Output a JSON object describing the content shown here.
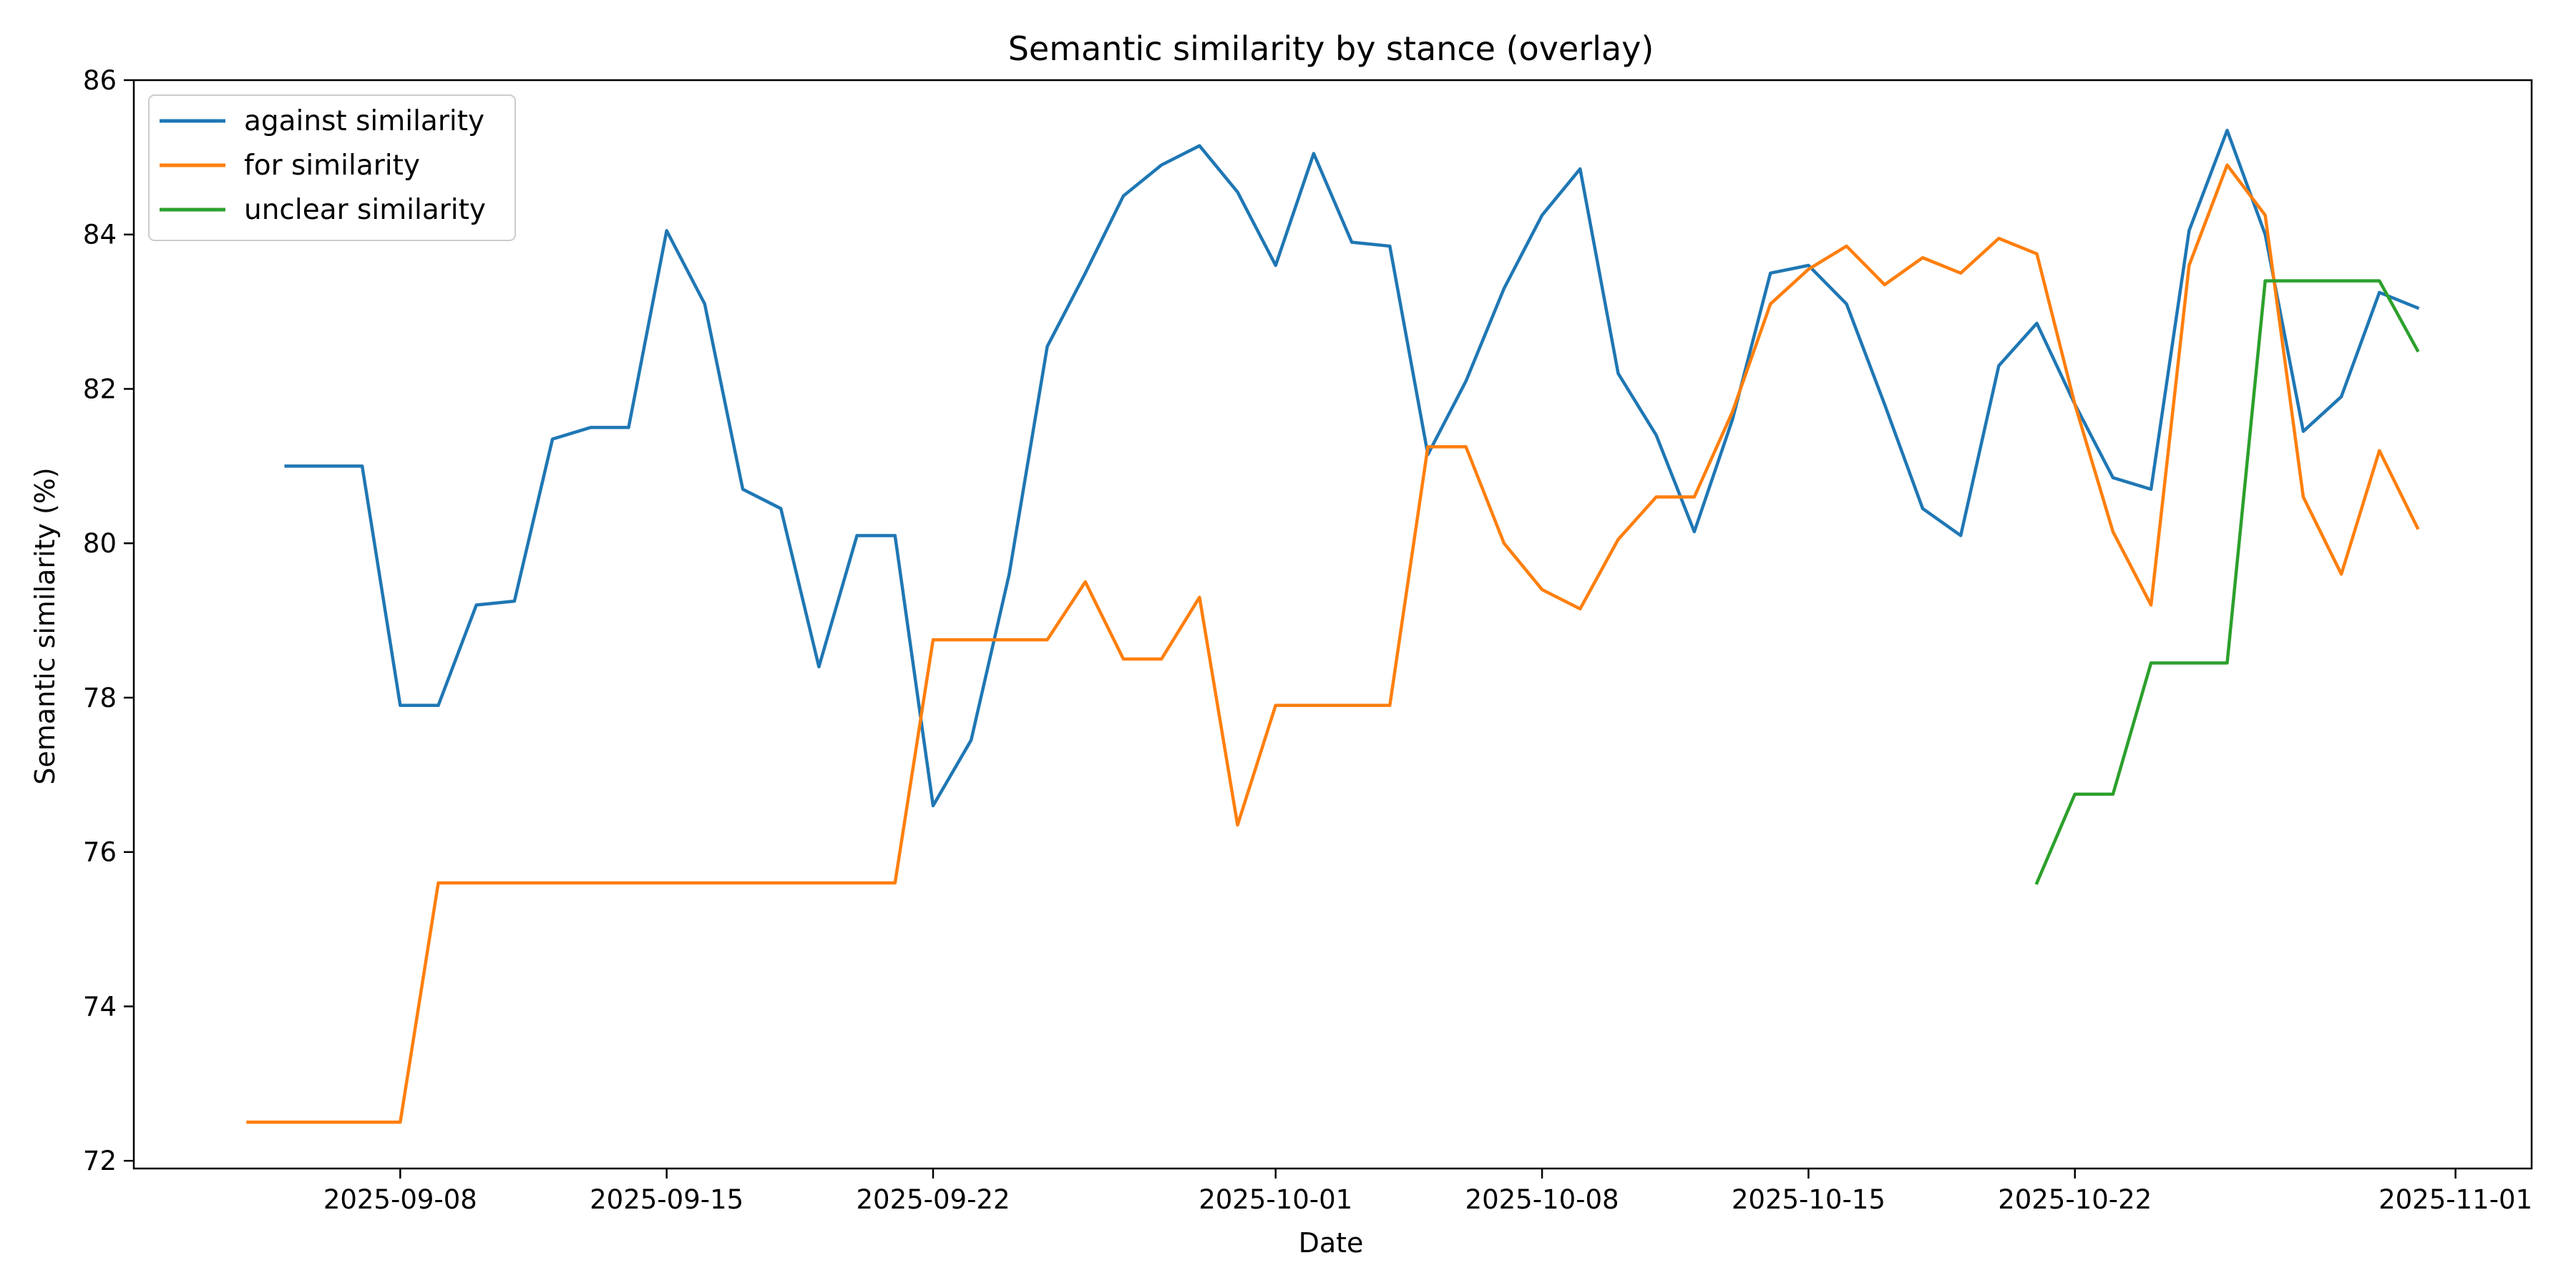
{
  "chart_data": {
    "type": "line",
    "title": "Semantic similarity by stance (overlay)",
    "xlabel": "Date",
    "ylabel": "Semantic similarity (%)",
    "x_axis_type": "date",
    "xlim": [
      "2025-09-01",
      "2025-11-03"
    ],
    "ylim": [
      71.9,
      86.0
    ],
    "x_ticks": [
      "2025-09-08",
      "2025-09-15",
      "2025-09-22",
      "2025-10-01",
      "2025-10-08",
      "2025-10-15",
      "2025-10-22",
      "2025-11-01"
    ],
    "y_ticks": [
      72,
      74,
      76,
      78,
      80,
      82,
      84,
      86
    ],
    "grid": false,
    "legend_position": "upper-left",
    "series": [
      {
        "name": "against similarity",
        "color": "#1f77b4",
        "points": [
          [
            "2025-09-05",
            81.0
          ],
          [
            "2025-09-06",
            81.0
          ],
          [
            "2025-09-07",
            81.0
          ],
          [
            "2025-09-08",
            77.9
          ],
          [
            "2025-09-09",
            77.9
          ],
          [
            "2025-09-10",
            79.2
          ],
          [
            "2025-09-11",
            79.25
          ],
          [
            "2025-09-12",
            81.35
          ],
          [
            "2025-09-13",
            81.5
          ],
          [
            "2025-09-14",
            81.5
          ],
          [
            "2025-09-15",
            84.05
          ],
          [
            "2025-09-16",
            83.1
          ],
          [
            "2025-09-17",
            80.7
          ],
          [
            "2025-09-18",
            80.45
          ],
          [
            "2025-09-19",
            78.4
          ],
          [
            "2025-09-20",
            80.1
          ],
          [
            "2025-09-21",
            80.1
          ],
          [
            "2025-09-22",
            76.6
          ],
          [
            "2025-09-23",
            77.45
          ],
          [
            "2025-09-24",
            79.6
          ],
          [
            "2025-09-25",
            82.55
          ],
          [
            "2025-09-26",
            83.5
          ],
          [
            "2025-09-27",
            84.5
          ],
          [
            "2025-09-28",
            84.9
          ],
          [
            "2025-09-29",
            85.15
          ],
          [
            "2025-09-30",
            84.55
          ],
          [
            "2025-10-01",
            83.6
          ],
          [
            "2025-10-02",
            85.05
          ],
          [
            "2025-10-03",
            83.9
          ],
          [
            "2025-10-04",
            83.85
          ],
          [
            "2025-10-05",
            81.15
          ],
          [
            "2025-10-06",
            82.1
          ],
          [
            "2025-10-07",
            83.3
          ],
          [
            "2025-10-08",
            84.25
          ],
          [
            "2025-10-09",
            84.85
          ],
          [
            "2025-10-10",
            82.2
          ],
          [
            "2025-10-11",
            81.4
          ],
          [
            "2025-10-12",
            80.15
          ],
          [
            "2025-10-13",
            81.6
          ],
          [
            "2025-10-14",
            83.5
          ],
          [
            "2025-10-15",
            83.6
          ],
          [
            "2025-10-16",
            83.1
          ],
          [
            "2025-10-17",
            81.8
          ],
          [
            "2025-10-18",
            80.45
          ],
          [
            "2025-10-19",
            80.1
          ],
          [
            "2025-10-20",
            82.3
          ],
          [
            "2025-10-21",
            82.85
          ],
          [
            "2025-10-22",
            81.8
          ],
          [
            "2025-10-23",
            80.85
          ],
          [
            "2025-10-24",
            80.7
          ],
          [
            "2025-10-25",
            84.05
          ],
          [
            "2025-10-26",
            85.35
          ],
          [
            "2025-10-27",
            84.0
          ],
          [
            "2025-10-28",
            81.45
          ],
          [
            "2025-10-29",
            81.9
          ],
          [
            "2025-10-30",
            83.25
          ],
          [
            "2025-10-31",
            83.05
          ]
        ]
      },
      {
        "name": "for similarity",
        "color": "#ff7f0e",
        "points": [
          [
            "2025-09-04",
            72.5
          ],
          [
            "2025-09-05",
            72.5
          ],
          [
            "2025-09-06",
            72.5
          ],
          [
            "2025-09-07",
            72.5
          ],
          [
            "2025-09-08",
            72.5
          ],
          [
            "2025-09-09",
            75.6
          ],
          [
            "2025-09-10",
            75.6
          ],
          [
            "2025-09-11",
            75.6
          ],
          [
            "2025-09-12",
            75.6
          ],
          [
            "2025-09-13",
            75.6
          ],
          [
            "2025-09-14",
            75.6
          ],
          [
            "2025-09-15",
            75.6
          ],
          [
            "2025-09-16",
            75.6
          ],
          [
            "2025-09-17",
            75.6
          ],
          [
            "2025-09-18",
            75.6
          ],
          [
            "2025-09-19",
            75.6
          ],
          [
            "2025-09-20",
            75.6
          ],
          [
            "2025-09-21",
            75.6
          ],
          [
            "2025-09-22",
            78.75
          ],
          [
            "2025-09-23",
            78.75
          ],
          [
            "2025-09-24",
            78.75
          ],
          [
            "2025-09-25",
            78.75
          ],
          [
            "2025-09-26",
            79.5
          ],
          [
            "2025-09-27",
            78.5
          ],
          [
            "2025-09-28",
            78.5
          ],
          [
            "2025-09-29",
            79.3
          ],
          [
            "2025-09-30",
            76.35
          ],
          [
            "2025-10-01",
            77.9
          ],
          [
            "2025-10-02",
            77.9
          ],
          [
            "2025-10-03",
            77.9
          ],
          [
            "2025-10-04",
            77.9
          ],
          [
            "2025-10-05",
            81.25
          ],
          [
            "2025-10-06",
            81.25
          ],
          [
            "2025-10-07",
            80.0
          ],
          [
            "2025-10-08",
            79.4
          ],
          [
            "2025-10-09",
            79.15
          ],
          [
            "2025-10-10",
            80.05
          ],
          [
            "2025-10-11",
            80.6
          ],
          [
            "2025-10-12",
            80.6
          ],
          [
            "2025-10-13",
            81.7
          ],
          [
            "2025-10-14",
            83.1
          ],
          [
            "2025-10-15",
            83.55
          ],
          [
            "2025-10-16",
            83.85
          ],
          [
            "2025-10-17",
            83.35
          ],
          [
            "2025-10-18",
            83.7
          ],
          [
            "2025-10-19",
            83.5
          ],
          [
            "2025-10-20",
            83.95
          ],
          [
            "2025-10-21",
            83.75
          ],
          [
            "2025-10-22",
            81.8
          ],
          [
            "2025-10-23",
            80.15
          ],
          [
            "2025-10-24",
            79.2
          ],
          [
            "2025-10-25",
            83.6
          ],
          [
            "2025-10-26",
            84.9
          ],
          [
            "2025-10-27",
            84.25
          ],
          [
            "2025-10-28",
            80.6
          ],
          [
            "2025-10-29",
            79.6
          ],
          [
            "2025-10-30",
            81.2
          ],
          [
            "2025-10-31",
            80.2
          ]
        ]
      },
      {
        "name": "unclear similarity",
        "color": "#2ca02c",
        "points": [
          [
            "2025-10-21",
            75.6
          ],
          [
            "2025-10-22",
            76.75
          ],
          [
            "2025-10-23",
            76.75
          ],
          [
            "2025-10-24",
            78.45
          ],
          [
            "2025-10-25",
            78.45
          ],
          [
            "2025-10-26",
            78.45
          ],
          [
            "2025-10-27",
            83.4
          ],
          [
            "2025-10-28",
            83.4
          ],
          [
            "2025-10-29",
            83.4
          ],
          [
            "2025-10-30",
            83.4
          ],
          [
            "2025-10-31",
            82.5
          ]
        ]
      }
    ]
  }
}
